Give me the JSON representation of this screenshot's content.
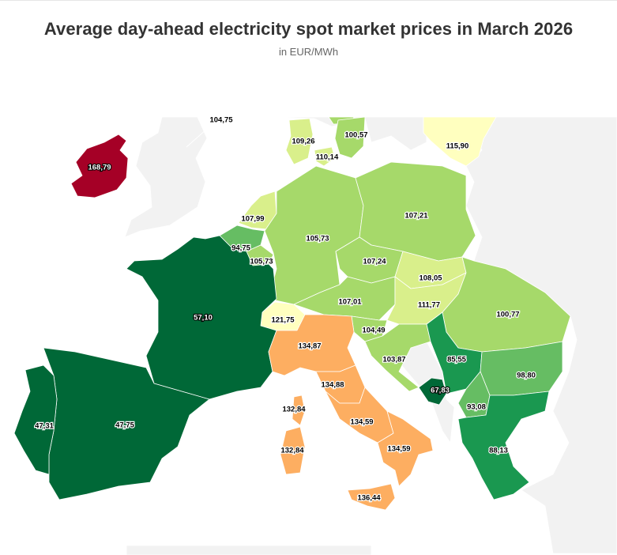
{
  "colors": {
    "background_land": "#f2f2f2",
    "title": "#333333",
    "subtitle": "#666666",
    "scale_darkgreen": "#006837",
    "scale_green": "#1a9850",
    "scale_midgreen": "#66bd63",
    "scale_lightgreen": "#a6d96a",
    "scale_palegreen": "#d9ef8b",
    "scale_yellow": "#ffffbf",
    "scale_orange": "#fdae61",
    "scale_darkred": "#a50026"
  },
  "chart_data": {
    "type": "choropleth-map",
    "title": "Average day-ahead electricity spot market prices in March 2026",
    "subtitle": "in EUR/MWh",
    "regions": [
      {
        "id": "no-north",
        "label": "104,75",
        "value": 104.75,
        "color": "#a6d96a"
      },
      {
        "id": "dk-west",
        "label": "109,26",
        "value": 109.26,
        "color": "#d9ef8b"
      },
      {
        "id": "se-south",
        "label": "100,57",
        "value": 100.57,
        "color": "#a6d96a"
      },
      {
        "id": "dk-east",
        "label": "110,14",
        "value": 110.14,
        "color": "#d9ef8b"
      },
      {
        "id": "lithuania",
        "label": "115,90",
        "value": 115.9,
        "color": "#ffffbf"
      },
      {
        "id": "ireland",
        "label": "168,79",
        "value": 168.79,
        "color": "#a50026"
      },
      {
        "id": "netherlands",
        "label": "107,99",
        "value": 107.99,
        "color": "#d9ef8b"
      },
      {
        "id": "germany",
        "label": "105,73",
        "value": 105.73,
        "color": "#a6d96a"
      },
      {
        "id": "poland",
        "label": "107,21",
        "value": 107.21,
        "color": "#a6d96a"
      },
      {
        "id": "belgium",
        "label": "94,75",
        "value": 94.75,
        "color": "#66bd63"
      },
      {
        "id": "luxembourg",
        "label": "105,73",
        "value": 105.73,
        "color": "#a6d96a"
      },
      {
        "id": "czechia",
        "label": "107,24",
        "value": 107.24,
        "color": "#a6d96a"
      },
      {
        "id": "slovakia",
        "label": "108,05",
        "value": 108.05,
        "color": "#d9ef8b"
      },
      {
        "id": "austria",
        "label": "107,01",
        "value": 107.01,
        "color": "#a6d96a"
      },
      {
        "id": "hungary",
        "label": "111,77",
        "value": 111.77,
        "color": "#d9ef8b"
      },
      {
        "id": "romania",
        "label": "100,77",
        "value": 100.77,
        "color": "#a6d96a"
      },
      {
        "id": "france",
        "label": "57,10",
        "value": 57.1,
        "color": "#006837"
      },
      {
        "id": "switzerland",
        "label": "121,75",
        "value": 121.75,
        "color": "#ffffbf"
      },
      {
        "id": "italy-north",
        "label": "134,87",
        "value": 134.87,
        "color": "#fdae61"
      },
      {
        "id": "slovenia",
        "label": "104,49",
        "value": 104.49,
        "color": "#a6d96a"
      },
      {
        "id": "croatia",
        "label": "103,87",
        "value": 103.87,
        "color": "#a6d96a"
      },
      {
        "id": "serbia",
        "label": "85,55",
        "value": 85.55,
        "color": "#1a9850"
      },
      {
        "id": "bulgaria",
        "label": "98,80",
        "value": 98.8,
        "color": "#66bd63"
      },
      {
        "id": "montenegro",
        "label": "67,83",
        "value": 67.83,
        "color": "#006837"
      },
      {
        "id": "italy-centre-north",
        "label": "134,88",
        "value": 134.88,
        "color": "#fdae61"
      },
      {
        "id": "corsica",
        "label": "132,84",
        "value": 132.84,
        "color": "#fdae61"
      },
      {
        "id": "sardinia",
        "label": "132,84",
        "value": 132.84,
        "color": "#fdae61"
      },
      {
        "id": "italy-centre-south",
        "label": "134,59",
        "value": 134.59,
        "color": "#fdae61"
      },
      {
        "id": "italy-south",
        "label": "134,59",
        "value": 134.59,
        "color": "#fdae61"
      },
      {
        "id": "north-macedonia",
        "label": "93,08",
        "value": 93.08,
        "color": "#66bd63"
      },
      {
        "id": "greece",
        "label": "88,13",
        "value": 88.13,
        "color": "#1a9850"
      },
      {
        "id": "sicily",
        "label": "136,44",
        "value": 136.44,
        "color": "#fdae61"
      },
      {
        "id": "portugal",
        "label": "47,31",
        "value": 47.31,
        "color": "#006837"
      },
      {
        "id": "spain",
        "label": "47,75",
        "value": 47.75,
        "color": "#006837"
      }
    ]
  }
}
